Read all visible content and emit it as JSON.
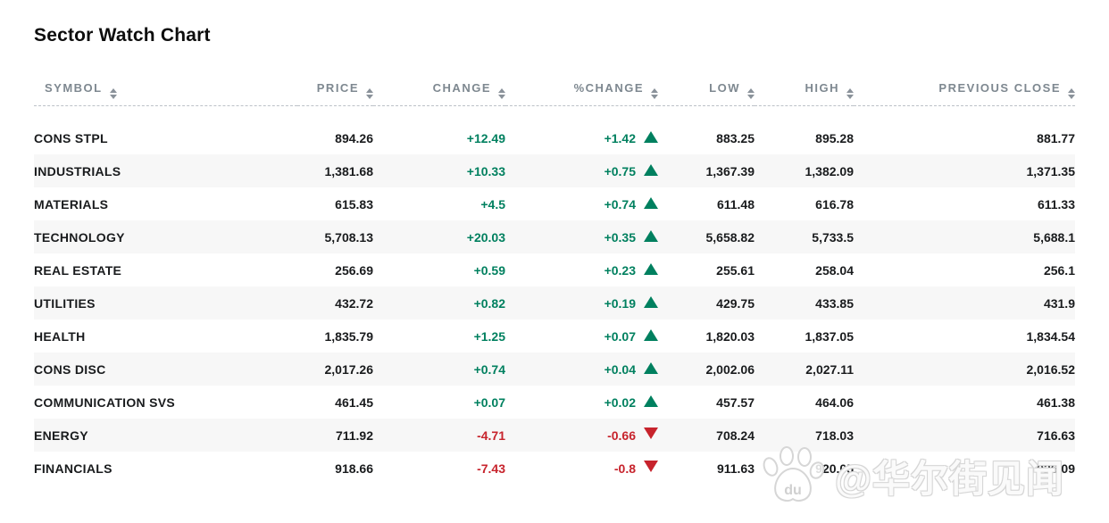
{
  "title": "Sector Watch Chart",
  "watermark": {
    "text": "@华尔街见闻",
    "logo_icon": "baidu-paw-icon",
    "logo_text": "du"
  },
  "colors": {
    "positive": "#00805f",
    "negative": "#c7232c",
    "header_text": "#7e8890",
    "alt_row": "#f7f7f7"
  },
  "table": {
    "columns": [
      {
        "key": "symbol",
        "label": "SYMBOL"
      },
      {
        "key": "price",
        "label": "PRICE"
      },
      {
        "key": "change",
        "label": "CHANGE"
      },
      {
        "key": "pct_change",
        "label": "%CHANGE"
      },
      {
        "key": "low",
        "label": "LOW"
      },
      {
        "key": "high",
        "label": "HIGH"
      },
      {
        "key": "prev_close",
        "label": "PREVIOUS CLOSE"
      }
    ],
    "rows": [
      {
        "symbol": "CONS STPL",
        "price": "894.26",
        "change": "+12.49",
        "pct_change": "+1.42",
        "trend": "up",
        "low": "883.25",
        "high": "895.28",
        "prev_close": "881.77"
      },
      {
        "symbol": "INDUSTRIALS",
        "price": "1,381.68",
        "change": "+10.33",
        "pct_change": "+0.75",
        "trend": "up",
        "low": "1,367.39",
        "high": "1,382.09",
        "prev_close": "1,371.35"
      },
      {
        "symbol": "MATERIALS",
        "price": "615.83",
        "change": "+4.5",
        "pct_change": "+0.74",
        "trend": "up",
        "low": "611.48",
        "high": "616.78",
        "prev_close": "611.33"
      },
      {
        "symbol": "TECHNOLOGY",
        "price": "5,708.13",
        "change": "+20.03",
        "pct_change": "+0.35",
        "trend": "up",
        "low": "5,658.82",
        "high": "5,733.5",
        "prev_close": "5,688.1"
      },
      {
        "symbol": "REAL ESTATE",
        "price": "256.69",
        "change": "+0.59",
        "pct_change": "+0.23",
        "trend": "up",
        "low": "255.61",
        "high": "258.04",
        "prev_close": "256.1"
      },
      {
        "symbol": "UTILITIES",
        "price": "432.72",
        "change": "+0.82",
        "pct_change": "+0.19",
        "trend": "up",
        "low": "429.75",
        "high": "433.85",
        "prev_close": "431.9"
      },
      {
        "symbol": "HEALTH",
        "price": "1,835.79",
        "change": "+1.25",
        "pct_change": "+0.07",
        "trend": "up",
        "low": "1,820.03",
        "high": "1,837.05",
        "prev_close": "1,834.54"
      },
      {
        "symbol": "CONS DISC",
        "price": "2,017.26",
        "change": "+0.74",
        "pct_change": "+0.04",
        "trend": "up",
        "low": "2,002.06",
        "high": "2,027.11",
        "prev_close": "2,016.52"
      },
      {
        "symbol": "COMMUNICATION SVS",
        "price": "461.45",
        "change": "+0.07",
        "pct_change": "+0.02",
        "trend": "up",
        "low": "457.57",
        "high": "464.06",
        "prev_close": "461.38"
      },
      {
        "symbol": "ENERGY",
        "price": "711.92",
        "change": "-4.71",
        "pct_change": "-0.66",
        "trend": "down",
        "low": "708.24",
        "high": "718.03",
        "prev_close": "716.63"
      },
      {
        "symbol": "FINANCIALS",
        "price": "918.66",
        "change": "-7.43",
        "pct_change": "-0.8",
        "trend": "down",
        "low": "911.63",
        "high": "920.05",
        "prev_close": "926.09"
      }
    ]
  },
  "chart_data": {
    "type": "table",
    "title": "Sector Watch Chart",
    "columns": [
      "SYMBOL",
      "PRICE",
      "CHANGE",
      "%CHANGE",
      "LOW",
      "HIGH",
      "PREVIOUS CLOSE"
    ],
    "rows": [
      [
        "CONS STPL",
        894.26,
        12.49,
        1.42,
        883.25,
        895.28,
        881.77
      ],
      [
        "INDUSTRIALS",
        1381.68,
        10.33,
        0.75,
        1367.39,
        1382.09,
        1371.35
      ],
      [
        "MATERIALS",
        615.83,
        4.5,
        0.74,
        611.48,
        616.78,
        611.33
      ],
      [
        "TECHNOLOGY",
        5708.13,
        20.03,
        0.35,
        5658.82,
        5733.5,
        5688.1
      ],
      [
        "REAL ESTATE",
        256.69,
        0.59,
        0.23,
        255.61,
        258.04,
        256.1
      ],
      [
        "UTILITIES",
        432.72,
        0.82,
        0.19,
        429.75,
        433.85,
        431.9
      ],
      [
        "HEALTH",
        1835.79,
        1.25,
        0.07,
        1820.03,
        1837.05,
        1834.54
      ],
      [
        "CONS DISC",
        2017.26,
        0.74,
        0.04,
        2002.06,
        2027.11,
        2016.52
      ],
      [
        "COMMUNICATION SVS",
        461.45,
        0.07,
        0.02,
        457.57,
        464.06,
        461.38
      ],
      [
        "ENERGY",
        711.92,
        -4.71,
        -0.66,
        708.24,
        718.03,
        716.63
      ],
      [
        "FINANCIALS",
        918.66,
        -7.43,
        -0.8,
        911.63,
        920.05,
        926.09
      ]
    ]
  }
}
